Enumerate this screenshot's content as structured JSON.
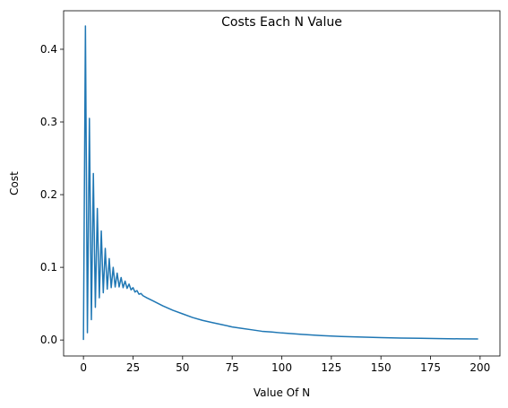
{
  "chart_data": {
    "type": "line",
    "title": "Costs Each N Value",
    "xlabel": "Value Of N",
    "ylabel": "Cost",
    "xlim": [
      -10,
      210
    ],
    "ylim": [
      -0.022,
      0.453
    ],
    "xticks": [
      0,
      25,
      50,
      75,
      100,
      125,
      150,
      175,
      200
    ],
    "xtick_labels": [
      "0",
      "25",
      "50",
      "75",
      "100",
      "125",
      "150",
      "175",
      "200"
    ],
    "yticks": [
      0.0,
      0.1,
      0.2,
      0.3,
      0.4
    ],
    "ytick_labels": [
      "0.0",
      "0.1",
      "0.2",
      "0.3",
      "0.4"
    ],
    "grid": false,
    "line_color": "#1f77b4",
    "series": [
      {
        "values_x": [
          0,
          1,
          2,
          3,
          4,
          5,
          6,
          7,
          8,
          9,
          10,
          11,
          12,
          13,
          14,
          15,
          16,
          17,
          18,
          19,
          20,
          21,
          22,
          23,
          24,
          25,
          26,
          27,
          28,
          29,
          30,
          32,
          35,
          40,
          45,
          50,
          55,
          60,
          65,
          70,
          75,
          80,
          85,
          90,
          95,
          100,
          110,
          120,
          130,
          140,
          150,
          160,
          170,
          180,
          190,
          199
        ],
        "values_y": [
          0.0,
          0.432,
          0.01,
          0.305,
          0.028,
          0.229,
          0.045,
          0.181,
          0.058,
          0.15,
          0.065,
          0.126,
          0.07,
          0.112,
          0.072,
          0.1,
          0.073,
          0.092,
          0.073,
          0.086,
          0.072,
          0.081,
          0.071,
          0.077,
          0.069,
          0.072,
          0.066,
          0.068,
          0.063,
          0.064,
          0.061,
          0.058,
          0.054,
          0.047,
          0.041,
          0.036,
          0.031,
          0.027,
          0.024,
          0.021,
          0.018,
          0.016,
          0.014,
          0.012,
          0.011,
          0.0097,
          0.0077,
          0.0061,
          0.0049,
          0.004,
          0.0033,
          0.0027,
          0.0023,
          0.0019,
          0.0016,
          0.0014
        ]
      }
    ]
  }
}
